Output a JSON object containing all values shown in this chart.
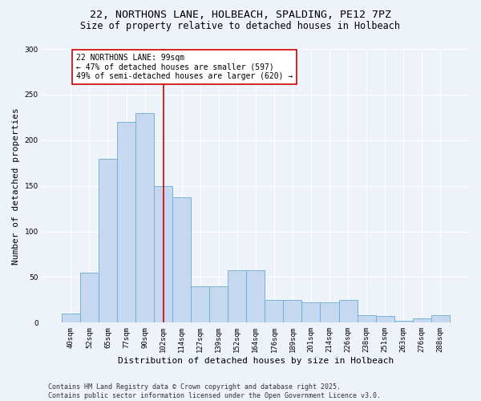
{
  "title_line1": "22, NORTHONS LANE, HOLBEACH, SPALDING, PE12 7PZ",
  "title_line2": "Size of property relative to detached houses in Holbeach",
  "xlabel": "Distribution of detached houses by size in Holbeach",
  "ylabel": "Number of detached properties",
  "categories": [
    "40sqm",
    "52sqm",
    "65sqm",
    "77sqm",
    "90sqm",
    "102sqm",
    "114sqm",
    "127sqm",
    "139sqm",
    "152sqm",
    "164sqm",
    "176sqm",
    "189sqm",
    "201sqm",
    "214sqm",
    "226sqm",
    "238sqm",
    "251sqm",
    "263sqm",
    "276sqm",
    "288sqm"
  ],
  "values": [
    10,
    55,
    180,
    220,
    230,
    150,
    137,
    40,
    40,
    57,
    57,
    25,
    25,
    22,
    22,
    25,
    8,
    7,
    2,
    5,
    8
  ],
  "bar_color": "#c5d8f0",
  "bar_edge_color": "#6aaad4",
  "vertical_line_x": 5,
  "vertical_line_color": "#cc0000",
  "annotation_text": "22 NORTHONS LANE: 99sqm\n← 47% of detached houses are smaller (597)\n49% of semi-detached houses are larger (620) →",
  "annotation_box_color": "#ffffff",
  "annotation_box_edge": "#cc0000",
  "ylim": [
    0,
    300
  ],
  "yticks": [
    0,
    50,
    100,
    150,
    200,
    250,
    300
  ],
  "footer_text": "Contains HM Land Registry data © Crown copyright and database right 2025.\nContains public sector information licensed under the Open Government Licence v3.0.",
  "background_color": "#eef2f9",
  "grid_color": "#ffffff",
  "title_fontsize": 9.5,
  "subtitle_fontsize": 8.5,
  "axis_label_fontsize": 8,
  "tick_fontsize": 6.5,
  "annotation_fontsize": 7,
  "footer_fontsize": 6
}
